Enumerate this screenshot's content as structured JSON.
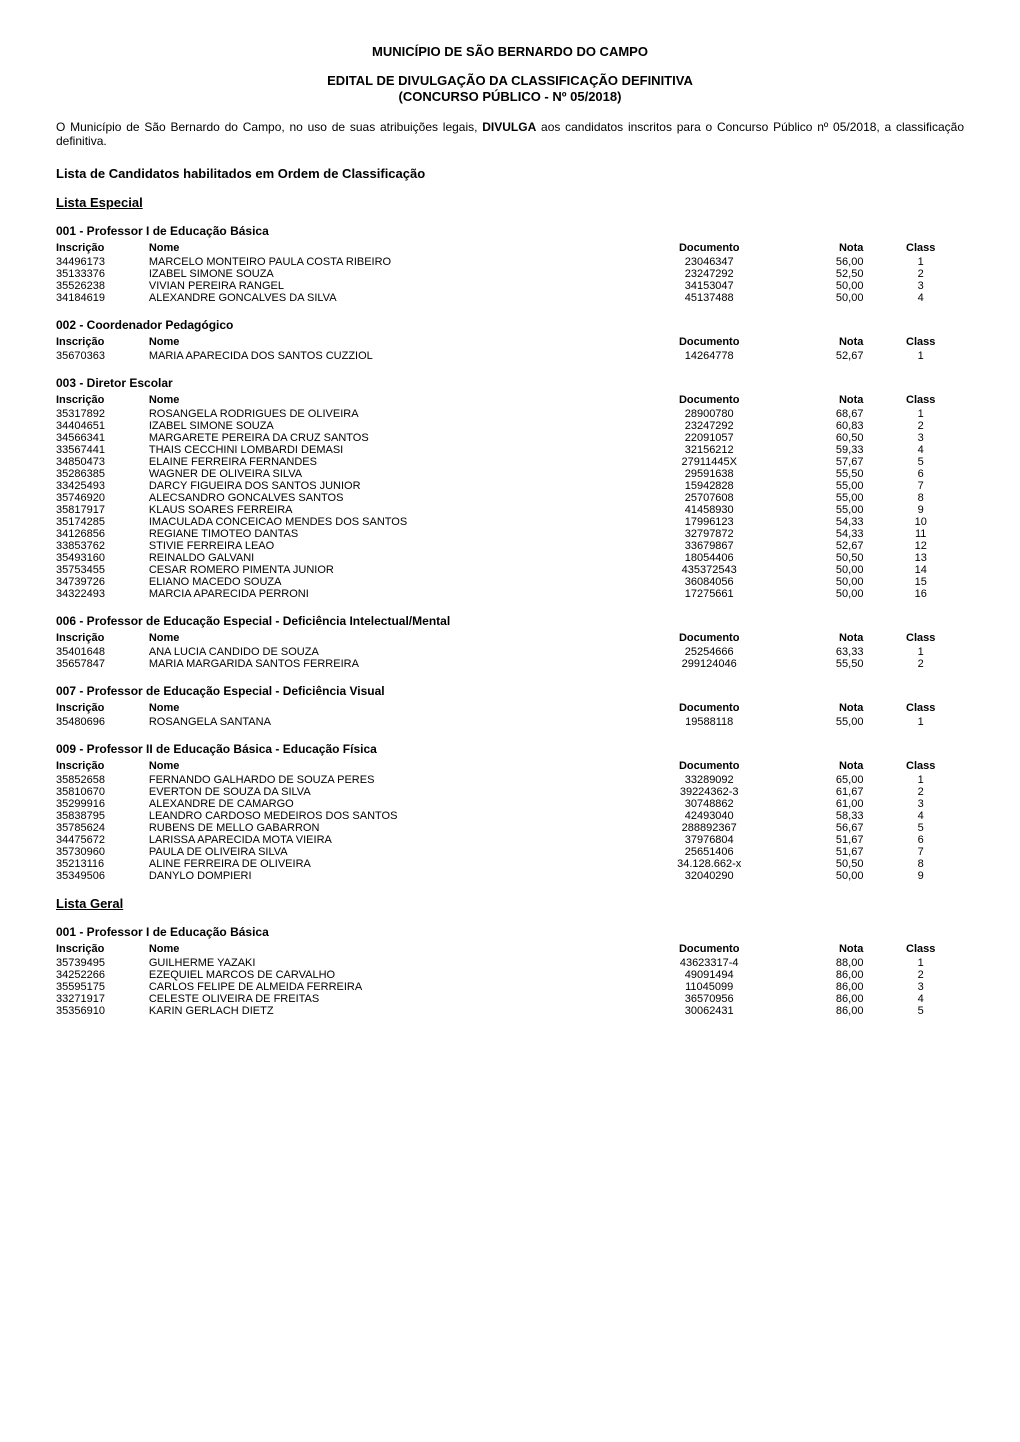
{
  "header": {
    "municipality": "MUNICÍPIO DE SÃO BERNARDO DO CAMPO",
    "notice_line1": "EDITAL DE DIVULGAÇÃO DA CLASSIFICAÇÃO DEFINITIVA",
    "notice_line2": "(CONCURSO PÚBLICO - Nº 05/2018)"
  },
  "intro": "O Município de São Bernardo do Campo, no uso de suas atribuições legais, DIVULGA aos candidatos inscritos para o Concurso Público nº 05/2018, a classificação definitiva.",
  "section_heading": "Lista de Candidatos habilitados em Ordem de Classificação",
  "lists": {
    "especial": "Lista Especial",
    "geral": "Lista Geral"
  },
  "table_headers": {
    "inscricao": "Inscrição",
    "nome": "Nome",
    "documento": "Documento",
    "nota": "Nota",
    "class": "Class"
  },
  "exams_especial": [
    {
      "name": "001 - Professor I de Educação Básica",
      "rows": [
        {
          "insc": "34496173",
          "nome": "MARCELO MONTEIRO PAULA COSTA RIBEIRO",
          "doc": "23046347",
          "nota": "56,00",
          "cls": "1"
        },
        {
          "insc": "35133376",
          "nome": "IZABEL SIMONE SOUZA",
          "doc": "23247292",
          "nota": "52,50",
          "cls": "2"
        },
        {
          "insc": "35526238",
          "nome": "VIVIAN PEREIRA RANGEL",
          "doc": "34153047",
          "nota": "50,00",
          "cls": "3"
        },
        {
          "insc": "34184619",
          "nome": "ALEXANDRE GONCALVES DA SILVA",
          "doc": "45137488",
          "nota": "50,00",
          "cls": "4"
        }
      ]
    },
    {
      "name": "002 - Coordenador Pedagógico",
      "rows": [
        {
          "insc": "35670363",
          "nome": "MARIA APARECIDA DOS SANTOS CUZZIOL",
          "doc": "14264778",
          "nota": "52,67",
          "cls": "1"
        }
      ]
    },
    {
      "name": "003 - Diretor Escolar",
      "rows": [
        {
          "insc": "35317892",
          "nome": "ROSANGELA RODRIGUES DE OLIVEIRA",
          "doc": "28900780",
          "nota": "68,67",
          "cls": "1"
        },
        {
          "insc": "34404651",
          "nome": "IZABEL SIMONE SOUZA",
          "doc": "23247292",
          "nota": "60,83",
          "cls": "2"
        },
        {
          "insc": "34566341",
          "nome": "MARGARETE PEREIRA DA CRUZ SANTOS",
          "doc": "22091057",
          "nota": "60,50",
          "cls": "3"
        },
        {
          "insc": "33567441",
          "nome": "THAIS CECCHINI LOMBARDI DEMASI",
          "doc": "32156212",
          "nota": "59,33",
          "cls": "4"
        },
        {
          "insc": "34850473",
          "nome": "ELAINE FERREIRA FERNANDES",
          "doc": "27911445X",
          "nota": "57,67",
          "cls": "5"
        },
        {
          "insc": "35286385",
          "nome": "WAGNER DE OLIVEIRA SILVA",
          "doc": "29591638",
          "nota": "55,50",
          "cls": "6"
        },
        {
          "insc": "33425493",
          "nome": "DARCY FIGUEIRA DOS SANTOS JUNIOR",
          "doc": "15942828",
          "nota": "55,00",
          "cls": "7"
        },
        {
          "insc": "35746920",
          "nome": "ALECSANDRO GONCALVES SANTOS",
          "doc": "25707608",
          "nota": "55,00",
          "cls": "8"
        },
        {
          "insc": "35817917",
          "nome": "KLAUS SOARES FERREIRA",
          "doc": "41458930",
          "nota": "55,00",
          "cls": "9"
        },
        {
          "insc": "35174285",
          "nome": "IMACULADA CONCEICAO MENDES DOS SANTOS",
          "doc": "17996123",
          "nota": "54,33",
          "cls": "10"
        },
        {
          "insc": "34126856",
          "nome": "REGIANE TIMOTEO DANTAS",
          "doc": "32797872",
          "nota": "54,33",
          "cls": "11"
        },
        {
          "insc": "33853762",
          "nome": "STIVIE FERREIRA LEAO",
          "doc": "33679867",
          "nota": "52,67",
          "cls": "12"
        },
        {
          "insc": "35493160",
          "nome": "REINALDO GALVANI",
          "doc": "18054406",
          "nota": "50,50",
          "cls": "13"
        },
        {
          "insc": "35753455",
          "nome": "CESAR ROMERO PIMENTA JUNIOR",
          "doc": "435372543",
          "nota": "50,00",
          "cls": "14"
        },
        {
          "insc": "34739726",
          "nome": "ELIANO MACEDO SOUZA",
          "doc": "36084056",
          "nota": "50,00",
          "cls": "15"
        },
        {
          "insc": "34322493",
          "nome": "MARCIA APARECIDA PERRONI",
          "doc": "17275661",
          "nota": "50,00",
          "cls": "16"
        }
      ]
    },
    {
      "name": "006 - Professor de Educação Especial - Deficiência Intelectual/Mental",
      "rows": [
        {
          "insc": "35401648",
          "nome": "ANA LUCIA CANDIDO DE SOUZA",
          "doc": "25254666",
          "nota": "63,33",
          "cls": "1"
        },
        {
          "insc": "35657847",
          "nome": "MARIA MARGARIDA SANTOS FERREIRA",
          "doc": "299124046",
          "nota": "55,50",
          "cls": "2"
        }
      ]
    },
    {
      "name": "007 - Professor de Educação Especial - Deficiência Visual",
      "rows": [
        {
          "insc": "35480696",
          "nome": "ROSANGELA SANTANA",
          "doc": "19588118",
          "nota": "55,00",
          "cls": "1"
        }
      ]
    },
    {
      "name": "009 - Professor II de Educação Básica - Educação Física",
      "rows": [
        {
          "insc": "35852658",
          "nome": "FERNANDO GALHARDO DE SOUZA PERES",
          "doc": "33289092",
          "nota": "65,00",
          "cls": "1"
        },
        {
          "insc": "35810670",
          "nome": "EVERTON DE SOUZA DA SILVA",
          "doc": "39224362-3",
          "nota": "61,67",
          "cls": "2"
        },
        {
          "insc": "35299916",
          "nome": "ALEXANDRE DE CAMARGO",
          "doc": "30748862",
          "nota": "61,00",
          "cls": "3"
        },
        {
          "insc": "35838795",
          "nome": "LEANDRO CARDOSO MEDEIROS DOS SANTOS",
          "doc": "42493040",
          "nota": "58,33",
          "cls": "4"
        },
        {
          "insc": "35785624",
          "nome": "RUBENS DE MELLO GABARRON",
          "doc": "288892367",
          "nota": "56,67",
          "cls": "5"
        },
        {
          "insc": "34475672",
          "nome": "LARISSA APARECIDA MOTA VIEIRA",
          "doc": "37976804",
          "nota": "51,67",
          "cls": "6"
        },
        {
          "insc": "35730960",
          "nome": "PAULA DE OLIVEIRA SILVA",
          "doc": "25651406",
          "nota": "51,67",
          "cls": "7"
        },
        {
          "insc": "35213116",
          "nome": "ALINE FERREIRA DE OLIVEIRA",
          "doc": "34.128.662-x",
          "nota": "50,50",
          "cls": "8"
        },
        {
          "insc": "35349506",
          "nome": "DANYLO DOMPIERI",
          "doc": "32040290",
          "nota": "50,00",
          "cls": "9"
        }
      ]
    }
  ],
  "exams_geral": [
    {
      "name": "001 - Professor I de Educação Básica",
      "rows": [
        {
          "insc": "35739495",
          "nome": "GUILHERME YAZAKI",
          "doc": "43623317-4",
          "nota": "88,00",
          "cls": "1"
        },
        {
          "insc": "34252266",
          "nome": "EZEQUIEL MARCOS DE CARVALHO",
          "doc": "49091494",
          "nota": "86,00",
          "cls": "2"
        },
        {
          "insc": "35595175",
          "nome": "CARLOS FELIPE DE ALMEIDA FERREIRA",
          "doc": "11045099",
          "nota": "86,00",
          "cls": "3"
        },
        {
          "insc": "33271917",
          "nome": "CELESTE OLIVEIRA DE FREITAS",
          "doc": "36570956",
          "nota": "86,00",
          "cls": "4"
        },
        {
          "insc": "35356910",
          "nome": "KARIN GERLACH DIETZ",
          "doc": "30062431",
          "nota": "86,00",
          "cls": "5"
        }
      ]
    }
  ]
}
